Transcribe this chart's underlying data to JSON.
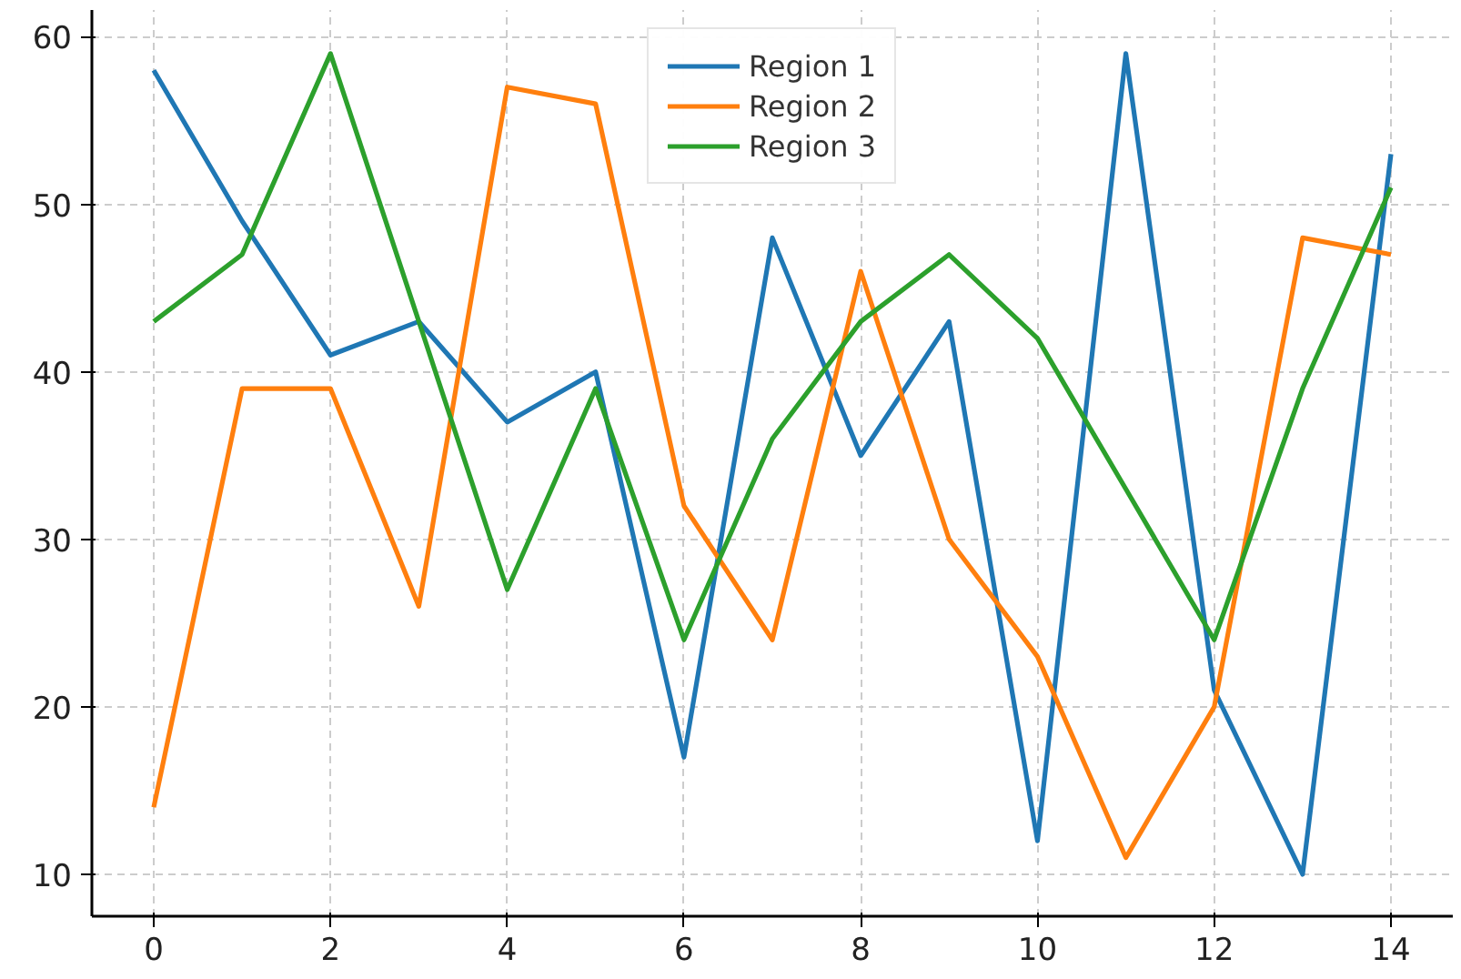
{
  "chart_data": {
    "type": "line",
    "x": [
      0,
      1,
      2,
      3,
      4,
      5,
      6,
      7,
      8,
      9,
      10,
      11,
      12,
      13,
      14
    ],
    "series": [
      {
        "name": "Region 1",
        "color": "#1f77b4",
        "values": [
          58,
          49,
          41,
          43,
          37,
          40,
          17,
          48,
          35,
          43,
          12,
          59,
          21,
          10,
          53
        ]
      },
      {
        "name": "Region 2",
        "color": "#ff7f0e",
        "values": [
          14,
          39,
          39,
          26,
          57,
          56,
          32,
          24,
          46,
          30,
          23,
          11,
          20,
          48,
          47
        ]
      },
      {
        "name": "Region 3",
        "color": "#2ca02c",
        "values": [
          43,
          47,
          59,
          43,
          27,
          39,
          24,
          36,
          43,
          47,
          42,
          33,
          24,
          39,
          51
        ]
      }
    ],
    "xlim": [
      -0.7,
      14.7
    ],
    "ylim": [
      7.5,
      61.6
    ],
    "xticks": [
      0,
      2,
      4,
      6,
      8,
      10,
      12,
      14
    ],
    "yticks": [
      10,
      20,
      30,
      40,
      50,
      60
    ],
    "grid": true,
    "legend": "top",
    "marker": "none",
    "line_style": "solid"
  }
}
